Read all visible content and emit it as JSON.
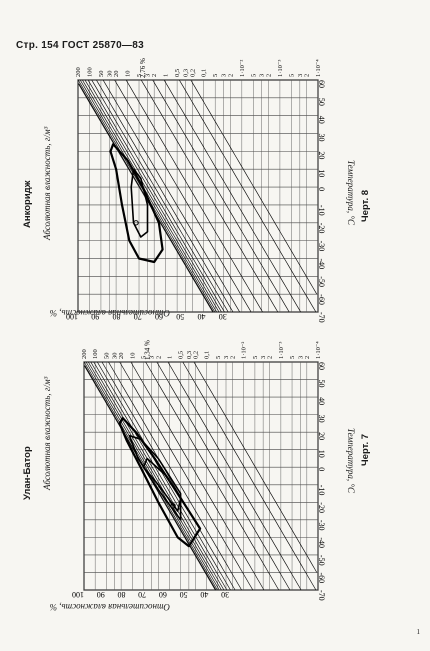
{
  "page": {
    "header": "Стр. 154 ГОСТ 25870—83",
    "page_number": "1"
  },
  "charts": [
    {
      "place": "Анкоридж",
      "caption": "Черт. 8",
      "max_ah_label": "2,76 %"
    },
    {
      "place": "Улан-Батор",
      "caption": "Черт. 7",
      "max_ah_label": "1,34 %"
    }
  ],
  "chart_data": [
    {
      "type": "line",
      "title": "Анкоридж",
      "xlabel": "Температура, °С",
      "ylabel": "Абсолютная влажность, г/м³",
      "ylabel2": "Относительная влажность, %",
      "x_ticks": [
        "-70",
        "-60",
        "-50",
        "-40",
        "-30",
        "-20",
        "-10",
        "0",
        "10",
        "20",
        "30",
        "40",
        "50",
        "60"
      ],
      "y_ticks": [
        "1·10⁻⁴",
        "2",
        "3",
        "5",
        "1·10⁻³",
        "2",
        "3",
        "5",
        "1·10⁻²",
        "2",
        "3",
        "5",
        "0,1",
        "0,2",
        "0,3",
        "0,5",
        "1",
        "2",
        "3",
        "5",
        "10",
        "20",
        "30",
        "50",
        "100",
        "200"
      ],
      "rh_ticks": [
        "100",
        "90",
        "80",
        "70",
        "60",
        "50",
        "40",
        "30"
      ],
      "contours": [
        {
          "name": "outer",
          "points": [
            [
              -40,
              5.0
            ],
            [
              -30,
              9.0
            ],
            [
              -10,
              14
            ],
            [
              10,
              20
            ],
            [
              20,
              28
            ],
            [
              24,
              24
            ],
            [
              15,
              10
            ],
            [
              0,
              4
            ],
            [
              -20,
              1.5
            ],
            [
              -35,
              1.2
            ],
            [
              -42,
              2.0
            ]
          ]
        },
        {
          "name": "inner",
          "points": [
            [
              -28,
              4.5
            ],
            [
              -20,
              7.0
            ],
            [
              0,
              8.0
            ],
            [
              10,
              7.0
            ],
            [
              5,
              4.5
            ],
            [
              -10,
              3.0
            ],
            [
              -25,
              3.0
            ]
          ]
        }
      ],
      "marker": {
        "x": -20,
        "y": 6.0
      }
    },
    {
      "type": "line",
      "title": "Улан-Батор",
      "xlabel": "Температура, °С",
      "ylabel": "Абсолютная влажность, г/м³",
      "ylabel2": "Относительная влажность, %",
      "x_ticks": [
        "-70",
        "-60",
        "-50",
        "-40",
        "-30",
        "-20",
        "-10",
        "0",
        "10",
        "20",
        "30",
        "40",
        "50",
        "60"
      ],
      "y_ticks": [
        "1·10⁻⁴",
        "2",
        "3",
        "5",
        "1·10⁻³",
        "2",
        "3",
        "5",
        "1·10⁻²",
        "2",
        "3",
        "5",
        "0,1",
        "0,2",
        "0,3",
        "0,5",
        "1",
        "2",
        "3",
        "5",
        "10",
        "20",
        "30",
        "50",
        "100",
        "200"
      ],
      "rh_ticks": [
        "100",
        "90",
        "80",
        "70",
        "60",
        "50",
        "40",
        "30"
      ],
      "contours": [
        {
          "name": "outer",
          "points": [
            [
              -45,
              0.3
            ],
            [
              -40,
              0.6
            ],
            [
              -20,
              2.0
            ],
            [
              0,
              6.0
            ],
            [
              15,
              14
            ],
            [
              25,
              22
            ],
            [
              28,
              18
            ],
            [
              20,
              8
            ],
            [
              5,
              2.5
            ],
            [
              -15,
              0.6
            ],
            [
              -35,
              0.15
            ]
          ]
        },
        {
          "name": "middle",
          "points": [
            [
              -30,
              0.5
            ],
            [
              -10,
              2.5
            ],
            [
              5,
              7.0
            ],
            [
              18,
              12
            ],
            [
              16,
              6
            ],
            [
              5,
              2.0
            ],
            [
              -15,
              0.5
            ]
          ]
        },
        {
          "name": "inner",
          "points": [
            [
              -25,
              0.6
            ],
            [
              -10,
              2.0
            ],
            [
              0,
              5.0
            ],
            [
              5,
              4.0
            ],
            [
              -5,
              1.2
            ],
            [
              -18,
              0.5
            ]
          ]
        }
      ],
      "marker": {
        "x": -22,
        "y": 0.8
      }
    }
  ]
}
